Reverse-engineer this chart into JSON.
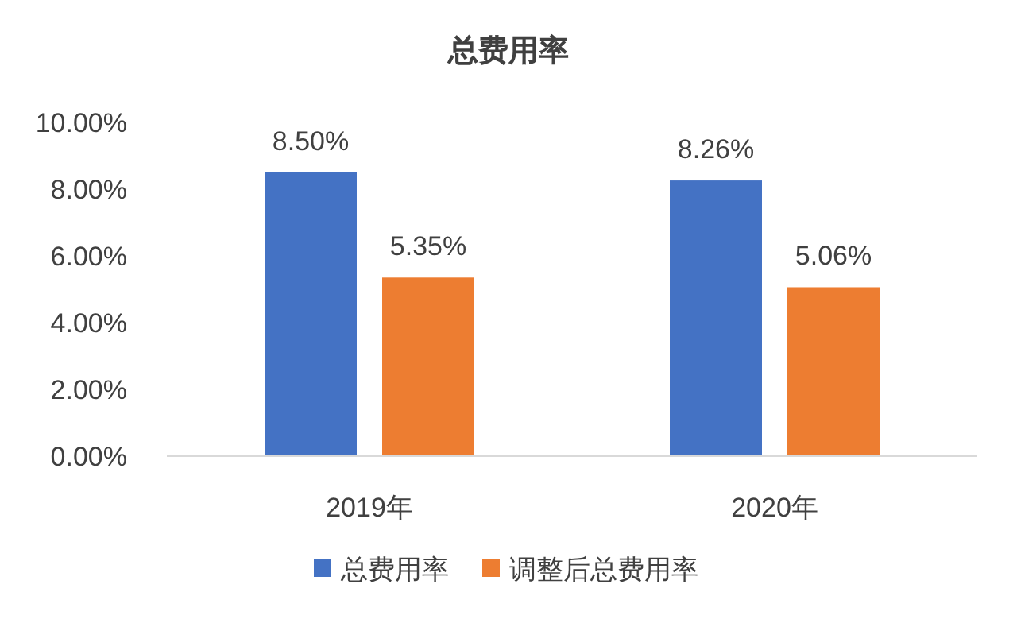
{
  "chart_data": {
    "type": "bar",
    "title": "总费用率",
    "categories": [
      "2019年",
      "2020年"
    ],
    "series": [
      {
        "name": "总费用率",
        "color": "#4472c4",
        "values": [
          8.5,
          8.26
        ],
        "value_labels": [
          "8.50%",
          "8.26%"
        ]
      },
      {
        "name": "调整后总费用率",
        "color": "#ed7d31",
        "values": [
          5.35,
          5.06
        ],
        "value_labels": [
          "5.35%",
          "5.06%"
        ]
      }
    ],
    "ylim": [
      0,
      10
    ],
    "yticks": [
      {
        "value": 0,
        "label": "0.00%"
      },
      {
        "value": 2,
        "label": "2.00%"
      },
      {
        "value": 4,
        "label": "4.00%"
      },
      {
        "value": 6,
        "label": "6.00%"
      },
      {
        "value": 8,
        "label": "8.00%"
      },
      {
        "value": 10,
        "label": "10.00%"
      }
    ],
    "grid": false,
    "legend": "bottom"
  }
}
